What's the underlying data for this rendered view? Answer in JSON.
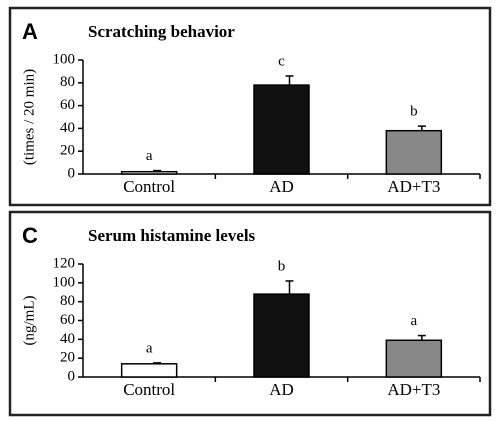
{
  "chart_data": [
    {
      "type": "bar",
      "panel": "A",
      "title": "Scratching behavior",
      "y_label": "(times / 20 min)",
      "categories": [
        "Control",
        "AD",
        "AD+T3"
      ],
      "values": [
        2,
        78,
        38
      ],
      "errors": [
        1,
        8,
        4
      ],
      "annotations": [
        "a",
        "c",
        "b"
      ],
      "colors": [
        "#ffffff",
        "#111111",
        "#888888"
      ],
      "ylim": [
        0,
        100
      ],
      "yticks": [
        0,
        20,
        40,
        60,
        80,
        100
      ]
    },
    {
      "type": "bar",
      "panel": "C",
      "title": "Serum histamine levels",
      "y_label": "(ng/mL)",
      "categories": [
        "Control",
        "AD",
        "AD+T3"
      ],
      "values": [
        14,
        88,
        39
      ],
      "errors": [
        1,
        14,
        5
      ],
      "annotations": [
        "a",
        "b",
        "a"
      ],
      "colors": [
        "#ffffff",
        "#111111",
        "#888888"
      ],
      "ylim": [
        0,
        120
      ],
      "yticks": [
        0,
        20,
        40,
        60,
        80,
        100,
        120
      ]
    }
  ]
}
